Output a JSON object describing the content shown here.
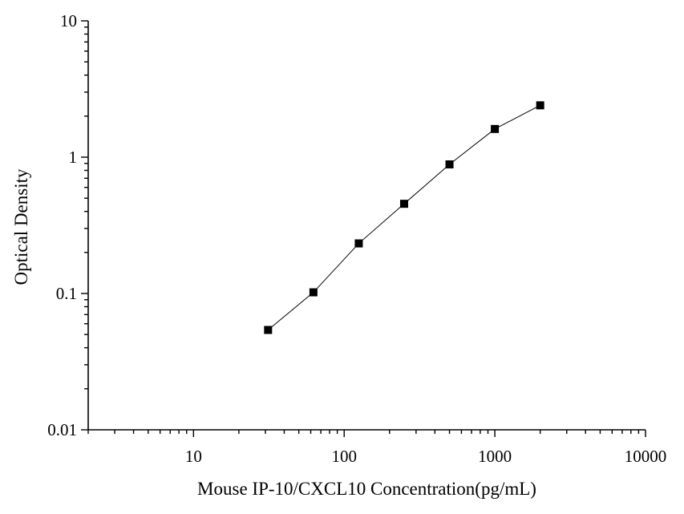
{
  "chart_data": {
    "type": "scatter",
    "title": "",
    "xlabel": "Mouse IP-10/CXCL10 Concentration(pg/mL)",
    "ylabel": "Optical Density",
    "x_scale": "log",
    "y_scale": "log",
    "xlim": [
      2,
      10000
    ],
    "ylim": [
      0.01,
      10
    ],
    "x_ticks": [
      {
        "value": 10,
        "label": "10"
      },
      {
        "value": 100,
        "label": "100"
      },
      {
        "value": 1000,
        "label": "1000"
      },
      {
        "value": 10000,
        "label": "10000"
      }
    ],
    "y_ticks": [
      {
        "value": 0.01,
        "label": "0.01"
      },
      {
        "value": 0.1,
        "label": "0.1"
      },
      {
        "value": 1,
        "label": "1"
      },
      {
        "value": 10,
        "label": "10"
      }
    ],
    "grid": false,
    "legend": "none",
    "marker": "square",
    "color": "#000000",
    "series": [
      {
        "x": [
          31.25,
          62.5,
          125,
          250,
          500,
          1000,
          2000
        ],
        "y": [
          0.054,
          0.102,
          0.233,
          0.455,
          0.885,
          1.61,
          2.4
        ],
        "fit_line": true
      }
    ]
  }
}
